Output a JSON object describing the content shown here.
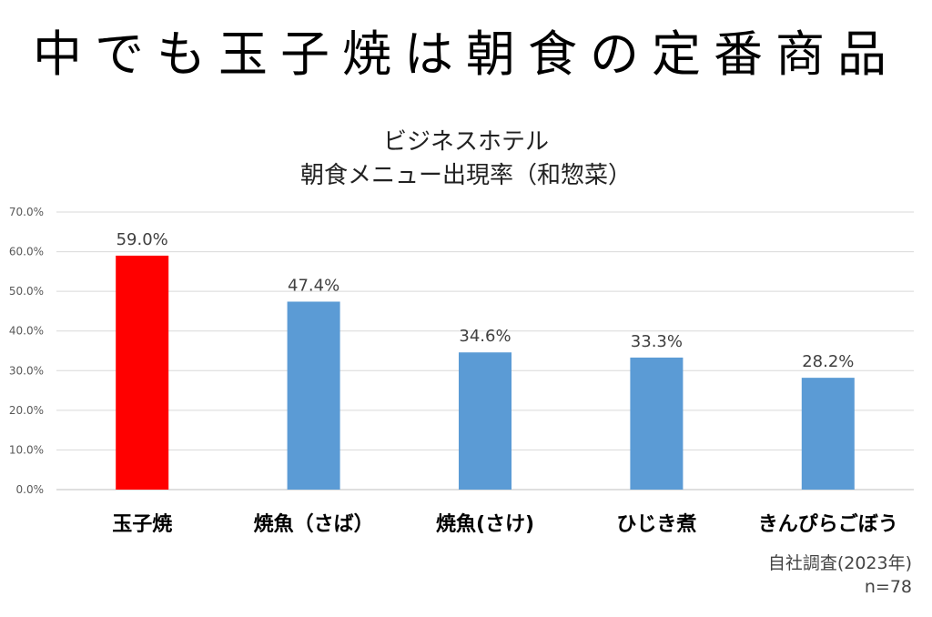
{
  "headline": "中でも玉子焼は朝食の定番商品",
  "chart_data": {
    "type": "bar",
    "title_line1": "ビジネスホテル",
    "title_line2": "朝食メニュー出現率（和惣菜）",
    "categories": [
      "玉子焼",
      "焼魚（さば）",
      "焼魚(さけ)",
      "ひじき煮",
      "きんぴらごぼう"
    ],
    "values": [
      59.0,
      47.4,
      34.6,
      33.3,
      28.2
    ],
    "value_labels": [
      "59.0%",
      "47.4%",
      "34.6%",
      "33.3%",
      "28.2%"
    ],
    "bar_colors": [
      "#ff0000",
      "#5b9bd5",
      "#5b9bd5",
      "#5b9bd5",
      "#5b9bd5"
    ],
    "ylim": [
      0,
      70
    ],
    "yticks": [
      "0.0%",
      "10.0%",
      "20.0%",
      "30.0%",
      "40.0%",
      "50.0%",
      "60.0%",
      "70.0%"
    ],
    "grid": true,
    "xlabel": "",
    "ylabel": ""
  },
  "source": {
    "line1": "自社調査(2023年)",
    "line2": "n=78"
  }
}
